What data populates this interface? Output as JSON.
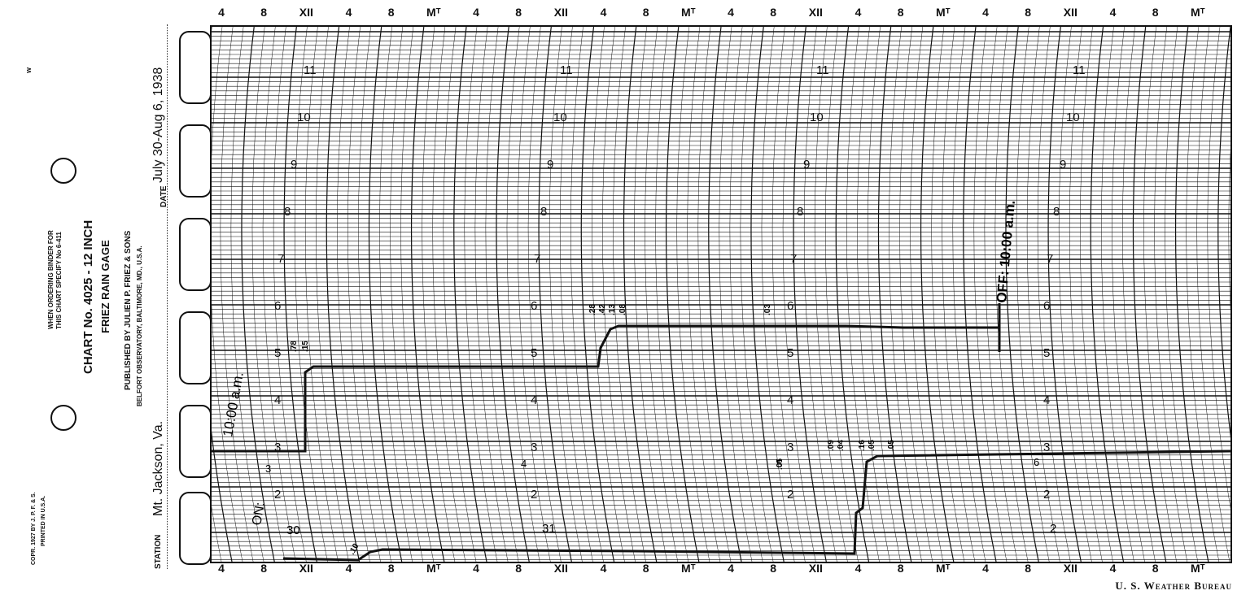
{
  "stub": {
    "mark": "w",
    "binder_line1": "WHEN ORDERING BINDER FOR",
    "binder_line2": "THIS CHART SPECIFY No 6-411",
    "chart_title": "CHART No. 4025 - 12 INCH",
    "gage_name": "FRIEZ RAIN GAGE",
    "publisher": "PUBLISHED BY JULIEN P. FRIEZ & SONS",
    "publisher_address": "BELFORT OBSERVATORY, BALTIMORE, MD., U.S.A.",
    "copyright_line1": "COPR. 1927 BY J. P. F. & S.",
    "copyright_line2": "PRINTED IN U.S.A.",
    "date_label": "DATE",
    "date_value": "July 30-Aug 6, 1938",
    "station_label": "STATION",
    "station_value": "Mt. Jackson, Va."
  },
  "time_axis": {
    "labels": [
      "4",
      "8",
      "XII",
      "4",
      "8",
      "Mᵀ",
      "4",
      "8",
      "XII",
      "4",
      "8",
      "Mᵀ",
      "4",
      "8",
      "XII",
      "4",
      "8",
      "Mᵀ",
      "4",
      "8",
      "XII",
      "4",
      "8",
      "Mᵀ"
    ]
  },
  "scale": {
    "column_values": [
      "11",
      "10",
      "9",
      "8",
      "7",
      "6",
      "5",
      "4",
      "3",
      "2"
    ]
  },
  "annotations": {
    "on_note": "10:00 a.m.",
    "on_label": "ON:",
    "off_note": "OFF: 10:00 a.m.",
    "day_30": "30",
    "day_31": "31",
    "day_2": "2",
    "day_3": "3",
    "day_4": "4",
    "day_5": "5",
    "day_6": "6",
    "val_a": ".78",
    "val_b": ".15",
    "val_c": ".28",
    "val_d": ".42",
    "val_e": ".13",
    "val_f": ".08",
    "val_g": ".03",
    "val_h": ".09",
    "val_i": ".04",
    "val_j": ".16",
    "val_k": ".05",
    "val_l": ".05",
    "val_m": ".05",
    "val_n": ".10"
  },
  "footer": {
    "credit": "U. S. Weather Bureau"
  },
  "colors": {
    "ink": "#111111",
    "paper": "#ffffff"
  }
}
